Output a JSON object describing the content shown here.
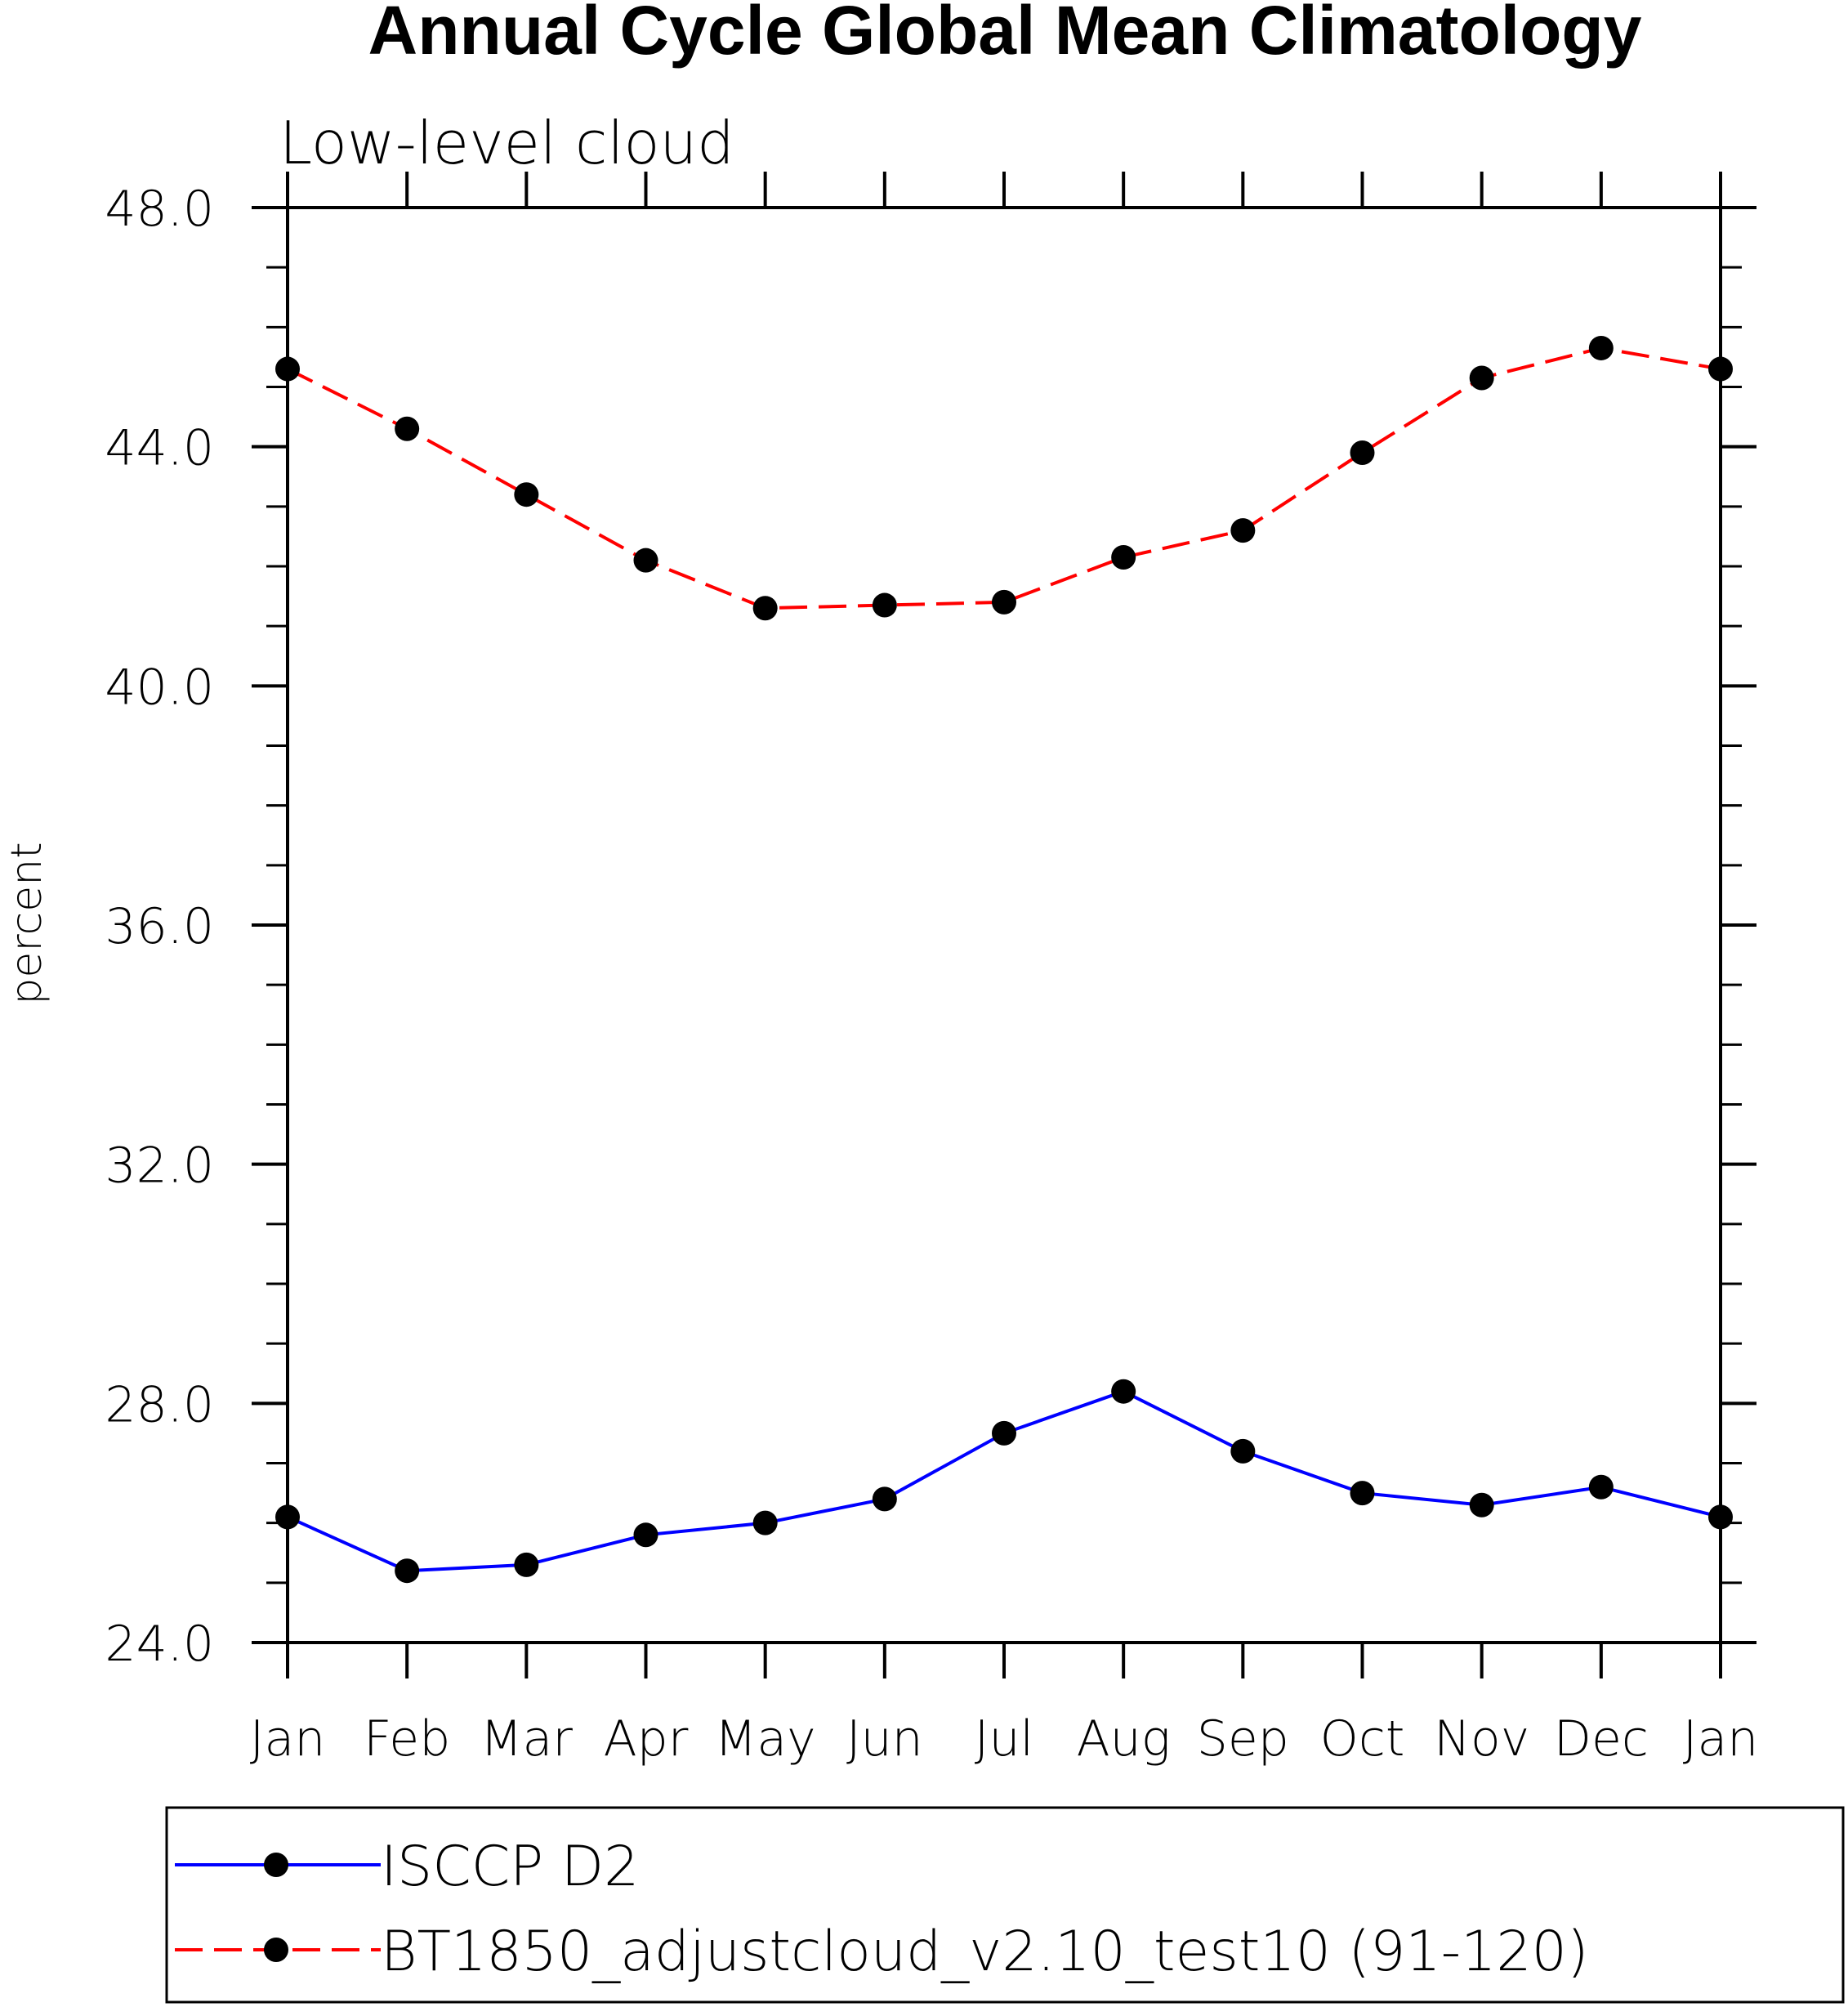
{
  "chart_data": {
    "type": "line",
    "title": "Annual Cycle Global Mean Climatology",
    "subtitle": "Low-level cloud",
    "xlabel": "",
    "ylabel": "percent",
    "categories": [
      "Jan",
      "Feb",
      "Mar",
      "Apr",
      "May",
      "Jun",
      "Jul",
      "Aug",
      "Sep",
      "Oct",
      "Nov",
      "Dec",
      "Jan"
    ],
    "ylim": [
      24.0,
      48.0
    ],
    "yticks": [
      "24.0",
      "28.0",
      "32.0",
      "36.0",
      "40.0",
      "44.0",
      "48.0"
    ],
    "grid": false,
    "legend_position": "bottom",
    "series": [
      {
        "name": "ISCCP D2",
        "color": "#0000ff",
        "dash": "solid",
        "marker": "filled-circle",
        "values": [
          26.1,
          25.2,
          25.3,
          25.8,
          26.0,
          26.4,
          27.5,
          28.2,
          27.2,
          26.5,
          26.3,
          26.6,
          26.1
        ]
      },
      {
        "name": "BT1850_adjustcloud_v2.10_test10 (91-120)",
        "color": "#ff0000",
        "dash": "dashed",
        "marker": "filled-circle",
        "values": [
          45.3,
          44.3,
          43.2,
          42.1,
          41.3,
          41.35,
          41.4,
          42.15,
          42.6,
          43.9,
          45.15,
          45.65,
          45.3
        ]
      }
    ]
  }
}
